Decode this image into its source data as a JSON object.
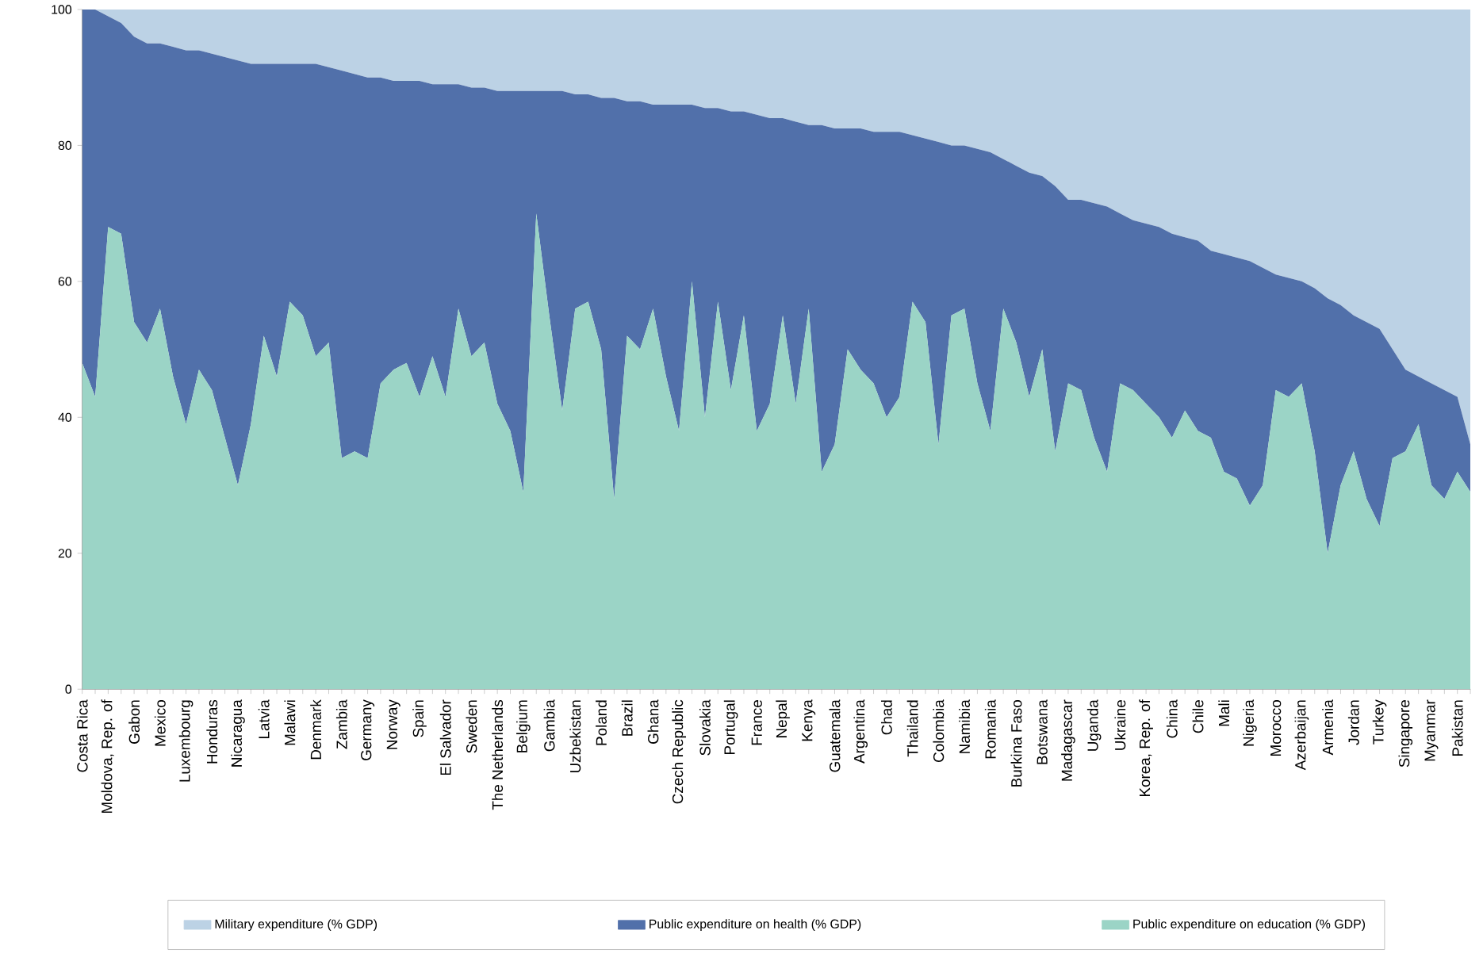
{
  "chart_data": {
    "type": "area",
    "stacked": true,
    "legend": "bottom",
    "categories": [
      "Costa Rica",
      null,
      "Moldova, Rep. of",
      null,
      "Gabon",
      null,
      "Mexico",
      null,
      "Luxembourg",
      null,
      "Honduras",
      null,
      "Nicaragua",
      null,
      "Latvia",
      null,
      "Malawi",
      null,
      "Denmark",
      null,
      "Zambia",
      null,
      "Germany",
      null,
      "Norway",
      null,
      "Spain",
      null,
      "El Salvador",
      null,
      "Sweden",
      null,
      "The Netherlands",
      null,
      "Belgium",
      null,
      "Gambia",
      null,
      "Uzbekistan",
      null,
      "Poland",
      null,
      "Brazil",
      null,
      "Ghana",
      null,
      "Czech Republic",
      null,
      "Slovakia",
      null,
      "Portugal",
      null,
      "France",
      null,
      "Nepal",
      null,
      "Kenya",
      null,
      "Guatemala",
      null,
      "Argentina",
      null,
      "Chad",
      null,
      "Thailand",
      null,
      "Colombia",
      null,
      "Namibia",
      null,
      "Romania",
      null,
      "Burkina Faso",
      null,
      "Botswana",
      null,
      "Madagascar",
      null,
      "Uganda",
      null,
      "Ukraine",
      null,
      "Korea, Rep. of",
      null,
      "China",
      null,
      "Chile",
      null,
      "Mali",
      null,
      "Nigeria",
      null,
      "Morocco",
      null,
      "Azerbaijan",
      null,
      "Armenia",
      null,
      "Jordan",
      null,
      "Turkey",
      null,
      "Singapore",
      null,
      "Myanmar",
      null,
      "Pakistan",
      null
    ],
    "ylim": [
      0,
      100
    ],
    "yticks": [
      0,
      20,
      40,
      60,
      80,
      100
    ],
    "series": [
      {
        "name": "Public expenditure on education (% GDP)",
        "color": "#9bd4c6",
        "values": [
          48,
          43,
          68,
          67,
          54,
          51,
          56,
          46,
          39,
          47,
          44,
          37,
          30,
          39,
          52,
          46,
          57,
          55,
          49,
          51,
          34,
          35,
          34,
          45,
          47,
          48,
          43,
          49,
          43,
          56,
          49,
          51,
          42,
          38,
          29,
          70,
          55,
          41,
          56,
          57,
          50,
          28,
          52,
          50,
          56,
          46,
          38,
          60,
          40,
          57,
          44,
          55,
          38,
          42,
          55,
          42,
          56,
          32,
          36,
          50,
          47,
          45,
          40,
          43,
          57,
          54,
          36,
          55,
          56,
          45,
          38,
          56,
          51,
          43,
          50,
          35,
          45,
          44,
          37,
          32,
          45,
          44,
          42,
          40,
          37,
          41,
          38,
          37,
          32,
          31,
          27,
          30,
          44,
          43,
          45,
          35,
          20,
          30,
          35,
          28,
          24,
          34,
          35,
          39,
          30,
          28,
          32,
          29
        ]
      },
      {
        "name": "Public expenditure on health (% GDP)",
        "color": "#5170aa",
        "values": [
          52,
          57,
          31,
          31,
          42,
          44,
          39,
          48.5,
          55,
          47,
          49.5,
          56,
          62.5,
          53,
          40,
          46,
          35,
          37,
          43,
          40.5,
          57,
          55.5,
          56,
          45,
          42.5,
          41.5,
          46.5,
          40,
          46,
          33,
          39.5,
          37.5,
          46,
          50,
          59,
          18,
          33,
          47,
          31.5,
          30.5,
          37,
          59,
          34.5,
          36.5,
          30,
          40,
          48,
          26,
          45.5,
          28.5,
          41,
          30,
          46.5,
          42,
          29,
          41.5,
          27,
          51,
          46.5,
          32.5,
          35.5,
          37,
          42,
          39,
          24.5,
          27,
          44.5,
          25,
          24,
          34.5,
          41,
          22,
          26,
          33,
          25.5,
          39,
          27,
          28,
          34.5,
          39,
          25,
          25,
          26.5,
          28,
          30,
          25.5,
          28,
          27.5,
          32,
          32.5,
          36,
          32,
          17,
          17.5,
          15,
          24,
          37.5,
          26.5,
          20,
          26,
          29,
          16,
          12,
          7,
          15,
          16,
          11,
          7
        ]
      },
      {
        "name": "Military expenditure (% GDP)",
        "color": "#bcd2e5",
        "values": [
          0,
          0,
          1,
          2,
          4,
          5,
          5,
          5.5,
          6,
          6,
          6.5,
          7,
          7.5,
          8,
          8,
          8,
          8,
          8,
          8,
          8.5,
          9,
          9.5,
          10,
          10,
          10.5,
          10.5,
          10.5,
          11,
          11,
          11,
          11.5,
          11.5,
          12,
          12,
          12,
          12,
          12,
          12,
          12.5,
          12.5,
          13,
          13,
          13.5,
          13.5,
          14,
          14,
          14,
          14,
          14.5,
          14.5,
          15,
          15,
          15.5,
          16,
          16,
          16.5,
          17,
          17,
          17.5,
          17.5,
          17.5,
          18,
          18,
          18,
          18.5,
          19,
          19.5,
          20,
          20,
          20.5,
          21,
          22,
          23,
          24,
          24.5,
          26,
          28,
          28,
          28.5,
          29,
          30,
          31,
          31.5,
          32,
          33,
          33.5,
          34,
          35.5,
          36,
          36.5,
          37,
          38,
          39,
          39.5,
          40,
          41,
          42.5,
          43.5,
          45,
          46,
          47,
          50,
          53,
          54,
          55,
          56,
          57,
          64
        ]
      }
    ]
  }
}
